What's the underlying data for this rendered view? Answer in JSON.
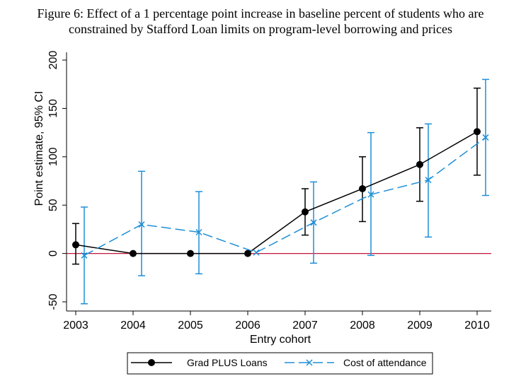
{
  "figure": {
    "title_line1": "Figure 6: Effect of a 1 percentage point increase in baseline percent of students who are",
    "title_line2": "constrained by Stafford Loan limits on program-level borrowing and prices"
  },
  "chart_data": {
    "type": "line",
    "xlabel": "Entry cohort",
    "ylabel": "Point estimate, 95% CI",
    "categories": [
      "2003",
      "2004",
      "2005",
      "2006",
      "2007",
      "2008",
      "2009",
      "2010"
    ],
    "ylim": [
      -55,
      205
    ],
    "yticks": [
      -50,
      0,
      50,
      100,
      150,
      200
    ],
    "reference_line": {
      "y": 0,
      "color": "#c0143c"
    },
    "grid": false,
    "legend_position": "bottom",
    "series": [
      {
        "name": "Grad PLUS Loans",
        "color": "#000000",
        "marker": "circle",
        "dash": "solid",
        "values": [
          9,
          0,
          0,
          0,
          43,
          67,
          92,
          126
        ],
        "ci_low": [
          -11,
          null,
          null,
          null,
          19,
          33,
          54,
          81
        ],
        "ci_high": [
          31,
          null,
          null,
          null,
          67,
          100,
          130,
          171
        ]
      },
      {
        "name": "Cost of attendance",
        "color": "#1f8fd6",
        "marker": "x",
        "dash": "dashed",
        "values": [
          -2,
          30,
          22,
          1,
          32,
          61,
          76,
          120
        ],
        "ci_low": [
          -52,
          -23,
          -21,
          null,
          -10,
          -2,
          17,
          60
        ],
        "ci_high": [
          48,
          85,
          64,
          null,
          74,
          125,
          134,
          180
        ]
      }
    ]
  }
}
